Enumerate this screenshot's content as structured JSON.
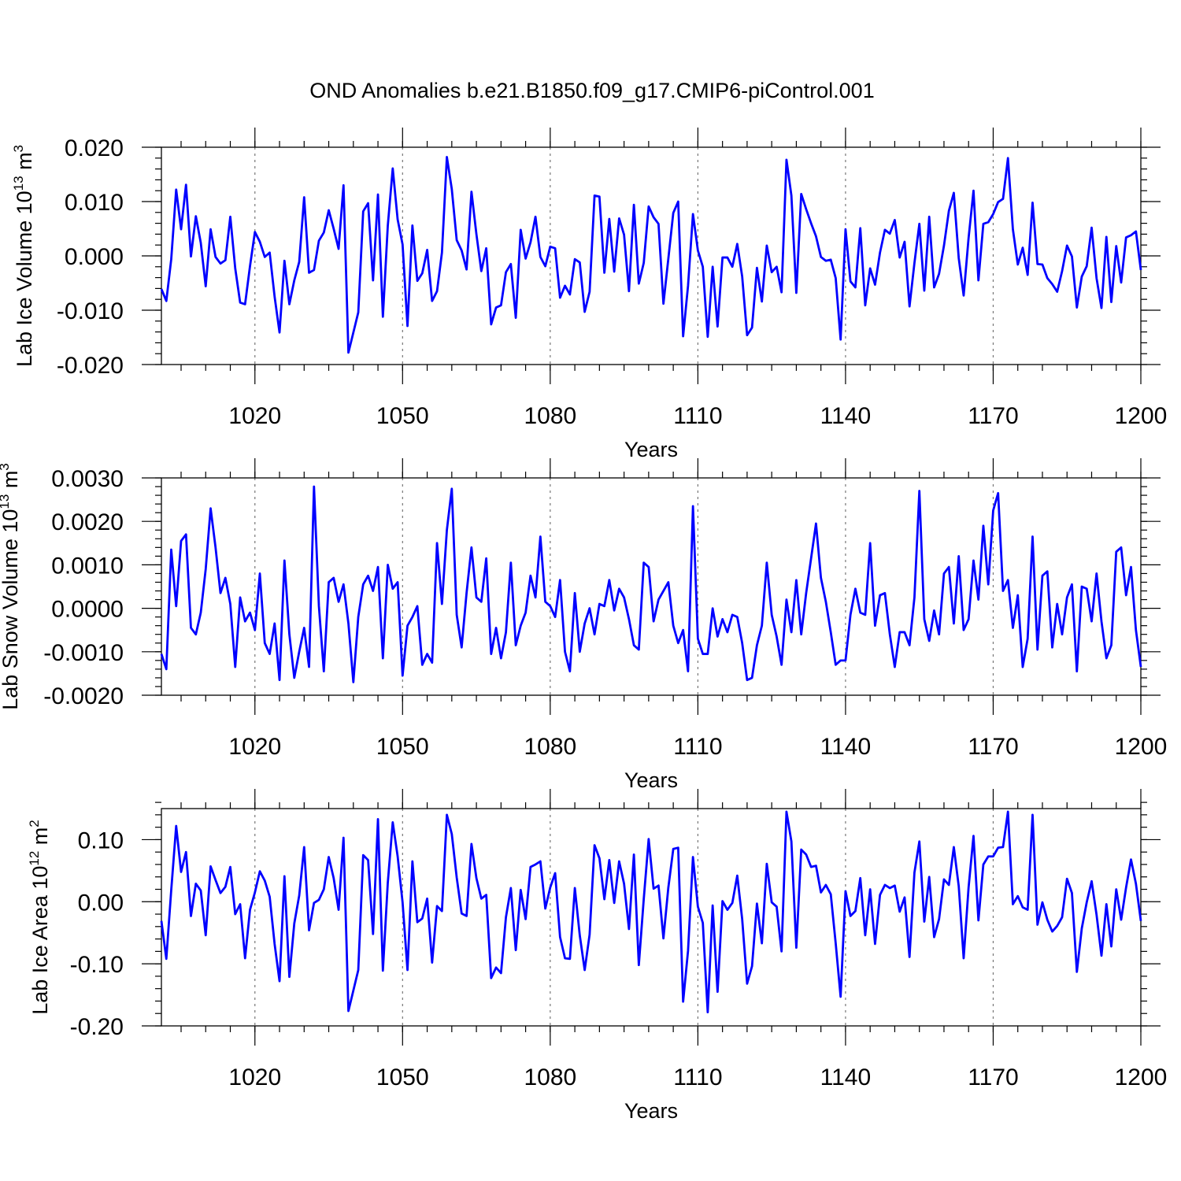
{
  "figure": {
    "title": "OND Anomalies b.e21.B1850.f09_g17.CMIP6-piControl.001"
  },
  "chart_data": [
    {
      "type": "line",
      "title": "OND Anomalies b.e21.B1850.f09_g17.CMIP6-piControl.001",
      "xlabel": "Years",
      "ylabel": "Lab Ice Volume",
      "ylabel_power": "10",
      "ylabel_exp": "13",
      "ylabel_unit": "m",
      "ylabel_unit_exp": "3",
      "xlim": [
        1001,
        1200
      ],
      "ylim": [
        -0.02,
        0.02
      ],
      "xticks": [
        1020,
        1050,
        1080,
        1110,
        1140,
        1170,
        1200
      ],
      "xtick_labels": [
        "1020",
        "1050",
        "1080",
        "1110",
        "1140",
        "1170",
        "1200"
      ],
      "yticks": [
        -0.02,
        -0.01,
        0.0,
        0.01,
        0.02
      ],
      "ytick_labels": [
        "-0.020",
        "-0.010",
        "0.000",
        "0.010",
        "0.020"
      ],
      "yminor_step": 0.002,
      "grid": "vertical dashed at 30-year intervals",
      "series": [
        {
          "name": "Lab Ice Volume",
          "color": "#0000ff",
          "x_start": 1001,
          "x_step": 1,
          "values": [
            -0.0061,
            -0.0083,
            -0.0006,
            0.0122,
            0.0049,
            0.0131,
            -0.0001,
            0.0073,
            0.0024,
            -0.0056,
            0.0049,
            -0.0002,
            -0.0014,
            -0.0008,
            0.0072,
            -0.0023,
            -0.0086,
            -0.0089,
            -0.0019,
            0.0044,
            0.0026,
            -0.0002,
            0.0006,
            -0.0075,
            -0.0141,
            -0.0009,
            -0.0089,
            -0.0045,
            -0.0011,
            0.0108,
            -0.0031,
            -0.0026,
            0.0028,
            0.0043,
            0.0084,
            0.005,
            0.0013,
            0.013,
            -0.0178,
            -0.0141,
            -0.0104,
            0.0082,
            0.0097,
            -0.0045,
            0.0113,
            -0.0112,
            0.0056,
            0.0161,
            0.0067,
            0.0021,
            -0.0129,
            0.0056,
            -0.0046,
            -0.0032,
            0.0011,
            -0.0083,
            -0.0065,
            0.0006,
            0.0182,
            0.0123,
            0.0029,
            0.001,
            -0.0025,
            0.0118,
            0.004,
            -0.0028,
            0.0014,
            -0.0126,
            -0.0095,
            -0.0091,
            -0.003,
            -0.0015,
            -0.0114,
            0.0048,
            -0.0005,
            0.0025,
            0.0072,
            -0.0002,
            -0.0019,
            0.0017,
            0.0014,
            -0.0077,
            -0.0055,
            -0.0071,
            -0.0006,
            -0.0012,
            -0.0103,
            -0.0066,
            0.0111,
            0.0109,
            -0.0031,
            0.0068,
            -0.0029,
            0.0069,
            0.0039,
            -0.0065,
            0.0094,
            -0.0051,
            -0.0013,
            0.0091,
            0.0071,
            0.0059,
            -0.0088,
            -0.0005,
            0.0079,
            0.01,
            -0.0148,
            -0.0055,
            0.0077,
            0.001,
            -0.002,
            -0.0149,
            -0.002,
            -0.013,
            -0.0003,
            -0.0003,
            -0.002,
            0.0022,
            -0.0038,
            -0.0146,
            -0.0132,
            -0.0022,
            -0.0084,
            0.0019,
            -0.003,
            -0.002,
            -0.0067,
            0.0177,
            0.0111,
            -0.0068,
            0.0114,
            0.0086,
            0.006,
            0.0036,
            -0.0002,
            -0.0009,
            -0.0007,
            -0.0041,
            -0.0154,
            0.0049,
            -0.0047,
            -0.0058,
            0.0051,
            -0.0091,
            -0.0023,
            -0.0053,
            0.0006,
            0.0048,
            0.0041,
            0.0066,
            -0.0003,
            0.0026,
            -0.0093,
            -0.0013,
            0.0059,
            -0.0064,
            0.0072,
            -0.0058,
            -0.0033,
            0.0019,
            0.0083,
            0.0116,
            -0.0004,
            -0.0073,
            0.0033,
            0.012,
            -0.0045,
            0.0059,
            0.0062,
            0.0077,
            0.0099,
            0.0105,
            0.018,
            0.0049,
            -0.0016,
            0.0015,
            -0.0035,
            0.0098,
            -0.0015,
            -0.0016,
            -0.0041,
            -0.0052,
            -0.0066,
            -0.0028,
            0.0019,
            -0.0001,
            -0.0095,
            -0.0038,
            -0.0019,
            0.0052,
            -0.0041,
            -0.0096,
            0.0035,
            -0.0085,
            0.0018,
            -0.0049,
            0.0034,
            0.0038,
            0.0045,
            -0.0026
          ]
        }
      ]
    },
    {
      "type": "line",
      "xlabel": "Years",
      "ylabel": "Lab Snow Volume",
      "ylabel_power": "10",
      "ylabel_exp": "13",
      "ylabel_unit": "m",
      "ylabel_unit_exp": "3",
      "xlim": [
        1001,
        1200
      ],
      "ylim": [
        -0.002,
        0.003
      ],
      "xticks": [
        1020,
        1050,
        1080,
        1110,
        1140,
        1170,
        1200
      ],
      "xtick_labels": [
        "1020",
        "1050",
        "1080",
        "1110",
        "1140",
        "1170",
        "1200"
      ],
      "yticks": [
        -0.002,
        -0.001,
        0.0,
        0.001,
        0.002,
        0.003
      ],
      "ytick_labels": [
        "-0.0020",
        "-0.0010",
        "0.0000",
        "0.0010",
        "0.0020",
        "0.0030"
      ],
      "yminor_step": 0.0002,
      "grid": "vertical dashed at 30-year intervals",
      "series": [
        {
          "name": "Lab Snow Volume",
          "color": "#0000ff",
          "x_start": 1001,
          "x_step": 1,
          "values": [
            -0.00105,
            -0.0014,
            0.00135,
            5e-05,
            0.00155,
            0.0017,
            -0.00045,
            -0.0006,
            -0.0001,
            0.0009,
            0.0023,
            0.0014,
            0.00035,
            0.0007,
            0.0001,
            -0.00135,
            0.00025,
            -0.0003,
            -0.0001,
            -0.0005,
            0.0008,
            -0.0008,
            -0.00105,
            -0.00035,
            -0.00165,
            0.0011,
            -0.0006,
            -0.0016,
            -0.001,
            -0.00045,
            -0.00135,
            0.0028,
            5e-05,
            -0.00145,
            0.0006,
            0.0007,
            0.00015,
            0.00055,
            -0.00035,
            -0.0017,
            -0.0002,
            0.00055,
            0.00075,
            0.0004,
            0.00095,
            -0.00115,
            0.001,
            0.00045,
            0.0006,
            -0.00155,
            -0.0004,
            -0.0002,
            5e-05,
            -0.0013,
            -0.00105,
            -0.00125,
            0.0015,
            0.0001,
            0.0018,
            0.00275,
            -0.00015,
            -0.0009,
            0.00035,
            0.0014,
            0.00025,
            0.00015,
            0.00115,
            -0.00105,
            -0.00045,
            -0.00115,
            -0.00055,
            0.00105,
            -0.00085,
            -0.0004,
            -0.0001,
            0.00075,
            0.00025,
            0.00165,
            0.00015,
            5e-05,
            -0.0002,
            0.00065,
            -0.001,
            -0.00145,
            0.00035,
            -0.001,
            -0.00035,
            0.0,
            -0.0006,
            0.0001,
            5e-05,
            0.00065,
            -5e-05,
            0.00045,
            0.00025,
            -0.00025,
            -0.00085,
            -0.00095,
            0.00105,
            0.00095,
            -0.0003,
            0.0002,
            0.0004,
            0.0006,
            -0.0004,
            -0.0008,
            -0.0005,
            -0.00145,
            0.00235,
            -0.0007,
            -0.00105,
            -0.00105,
            0.0,
            -0.00065,
            -0.00025,
            -0.00055,
            -0.00015,
            -0.0002,
            -0.0008,
            -0.00165,
            -0.0016,
            -0.00085,
            -0.0004,
            0.00105,
            -0.00015,
            -0.00065,
            -0.0013,
            0.0002,
            -0.00055,
            0.00065,
            -0.0006,
            0.00035,
            0.00115,
            0.00195,
            0.0007,
            0.00015,
            -0.00055,
            -0.0013,
            -0.0012,
            -0.0012,
            -0.00015,
            0.00045,
            -0.0001,
            -0.00015,
            0.0015,
            -0.0004,
            0.0003,
            0.00035,
            -0.0006,
            -0.00135,
            -0.00055,
            -0.00055,
            -0.00085,
            0.00025,
            0.0027,
            -0.00025,
            -0.00075,
            -5e-05,
            -0.0006,
            0.0008,
            0.00095,
            -0.00035,
            0.0012,
            -0.0005,
            -0.00025,
            0.0011,
            0.0002,
            0.0019,
            0.00055,
            0.00225,
            0.00265,
            0.0004,
            0.00065,
            -0.00045,
            0.0003,
            -0.00135,
            -0.0007,
            0.00165,
            -0.00095,
            0.00075,
            0.00085,
            -0.0009,
            0.0001,
            -0.0006,
            0.00025,
            0.00055,
            -0.00145,
            0.0005,
            0.00045,
            -0.0003,
            0.0008,
            -0.0003,
            -0.00115,
            -0.00085,
            0.0013,
            0.0014,
            0.0003,
            0.00095,
            -0.0005,
            -0.00135
          ]
        }
      ]
    },
    {
      "type": "line",
      "xlabel": "Years",
      "ylabel": "Lab Ice Area",
      "ylabel_power": "10",
      "ylabel_exp": "12",
      "ylabel_unit": "m",
      "ylabel_unit_exp": "2",
      "xlim": [
        1001,
        1200
      ],
      "ylim": [
        -0.2,
        0.15
      ],
      "xticks": [
        1020,
        1050,
        1080,
        1110,
        1140,
        1170,
        1200
      ],
      "xtick_labels": [
        "1020",
        "1050",
        "1080",
        "1110",
        "1140",
        "1170",
        "1200"
      ],
      "yticks": [
        -0.2,
        -0.1,
        0.0,
        0.1
      ],
      "ytick_labels": [
        "-0.20",
        "-0.10",
        "0.00",
        "0.10"
      ],
      "yminor_step": 0.02,
      "grid": "vertical dashed at 30-year intervals",
      "series": [
        {
          "name": "Lab Ice Area",
          "color": "#0000ff",
          "x_start": 1001,
          "x_step": 1,
          "values": [
            -0.031,
            -0.092,
            0.019,
            0.122,
            0.048,
            0.08,
            -0.023,
            0.029,
            0.018,
            -0.054,
            0.057,
            0.035,
            0.014,
            0.024,
            0.056,
            -0.02,
            -0.004,
            -0.091,
            -0.013,
            0.015,
            0.049,
            0.034,
            0.008,
            -0.068,
            -0.128,
            0.041,
            -0.121,
            -0.035,
            0.01,
            0.088,
            -0.046,
            -0.002,
            0.003,
            0.02,
            0.072,
            0.038,
            -0.013,
            0.103,
            -0.176,
            -0.143,
            -0.11,
            0.075,
            0.067,
            -0.052,
            0.133,
            -0.111,
            0.031,
            0.128,
            0.073,
            -0.001,
            -0.11,
            0.065,
            -0.033,
            -0.027,
            0.005,
            -0.098,
            -0.007,
            -0.015,
            0.14,
            0.109,
            0.039,
            -0.019,
            -0.023,
            0.093,
            0.038,
            0.005,
            0.011,
            -0.123,
            -0.106,
            -0.115,
            -0.025,
            0.022,
            -0.078,
            0.019,
            -0.028,
            0.056,
            0.06,
            0.065,
            -0.011,
            0.023,
            0.046,
            -0.057,
            -0.091,
            -0.092,
            0.022,
            -0.054,
            -0.11,
            -0.053,
            0.091,
            0.07,
            0.004,
            0.067,
            -0.002,
            0.065,
            0.029,
            -0.044,
            0.076,
            -0.102,
            0.004,
            0.101,
            0.021,
            0.026,
            -0.059,
            0.023,
            0.085,
            0.087,
            -0.161,
            -0.079,
            0.072,
            -0.008,
            -0.034,
            -0.178,
            -0.006,
            -0.145,
            0.001,
            -0.013,
            -0.002,
            0.042,
            -0.028,
            -0.132,
            -0.104,
            -0.003,
            -0.067,
            0.061,
            -0.001,
            -0.008,
            -0.08,
            0.145,
            0.097,
            -0.074,
            0.084,
            0.076,
            0.056,
            0.058,
            0.015,
            0.027,
            0.012,
            -0.067,
            -0.153,
            0.017,
            -0.023,
            -0.015,
            0.038,
            -0.054,
            0.02,
            -0.068,
            0.011,
            0.027,
            0.022,
            0.026,
            -0.016,
            0.007,
            -0.089,
            0.047,
            0.097,
            -0.032,
            0.04,
            -0.057,
            -0.028,
            0.036,
            0.027,
            0.088,
            0.025,
            -0.091,
            0.023,
            0.106,
            -0.03,
            0.06,
            0.073,
            0.073,
            0.087,
            0.088,
            0.145,
            -0.004,
            0.009,
            -0.009,
            -0.013,
            0.14,
            -0.037,
            -0.001,
            -0.029,
            -0.048,
            -0.039,
            -0.025,
            0.037,
            0.014,
            -0.113,
            -0.043,
            -0.001,
            0.033,
            -0.021,
            -0.087,
            -0.004,
            -0.072,
            0.02,
            -0.029,
            0.023,
            0.068,
            0.029,
            -0.031
          ]
        }
      ]
    }
  ]
}
